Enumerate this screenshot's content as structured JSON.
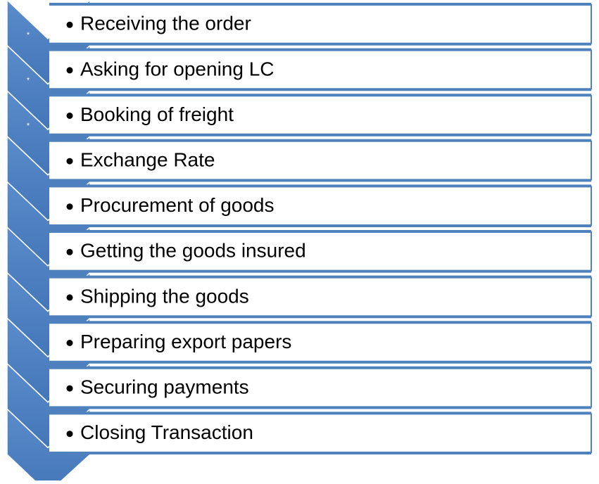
{
  "items": [
    {
      "label": "Receiving the order",
      "marker": "*"
    },
    {
      "label": "Asking for opening LC",
      "marker": "*"
    },
    {
      "label": "Booking of freight",
      "marker": "*"
    },
    {
      "label": "Exchange Rate"
    },
    {
      "label": "Procurement of goods"
    },
    {
      "label": "Getting the goods insured"
    },
    {
      "label": "Shipping the goods"
    },
    {
      "label": "Preparing export papers"
    },
    {
      "label": "Securing payments"
    },
    {
      "label": "Closing Transaction"
    }
  ]
}
